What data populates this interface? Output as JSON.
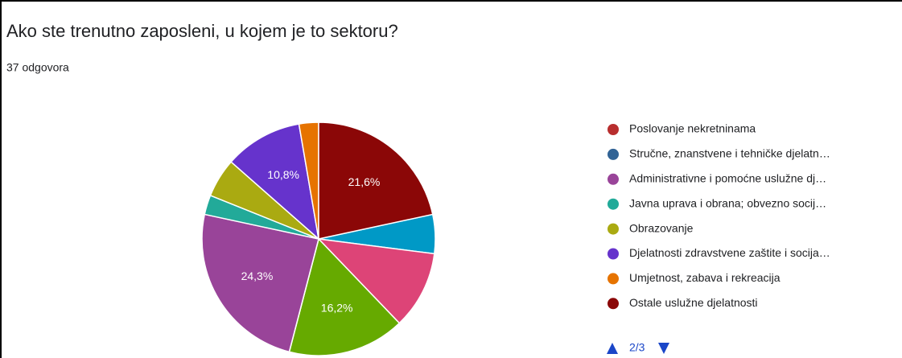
{
  "title": "Ako ste trenutno zaposleni, u kojem je to sektoru?",
  "subtitle": "37 odgovora",
  "chart_data": {
    "type": "pie",
    "categories": [
      null,
      null,
      null,
      "Poslovanje nekretninama",
      "Stručne, znanstvene i tehničke djelatn…",
      "Administrativne i pomoćne uslužne dj…",
      "Javna uprava i obrana; obvezno socij…",
      "Obrazovanje",
      "Djelatnosti zdravstvene zaštite i socija…",
      "Umjetnost, zabava i rekreacija",
      "Ostale uslužne djelatnosti"
    ],
    "values": [
      5.4,
      10.8,
      16.2,
      0,
      0,
      24.3,
      2.7,
      5.4,
      10.8,
      2.7,
      21.6
    ],
    "value_labels": [
      null,
      null,
      "16,2%",
      null,
      null,
      "24,3%",
      null,
      null,
      "10,8%",
      null,
      "21,6%"
    ],
    "colors": [
      "#0099c6",
      "#dd4477",
      "#66aa00",
      "#b82e2e",
      "#316395",
      "#994499",
      "#22aa99",
      "#aaaa11",
      "#6633cc",
      "#e67300",
      "#8b0707"
    ],
    "legend_page": "2/3"
  }
}
